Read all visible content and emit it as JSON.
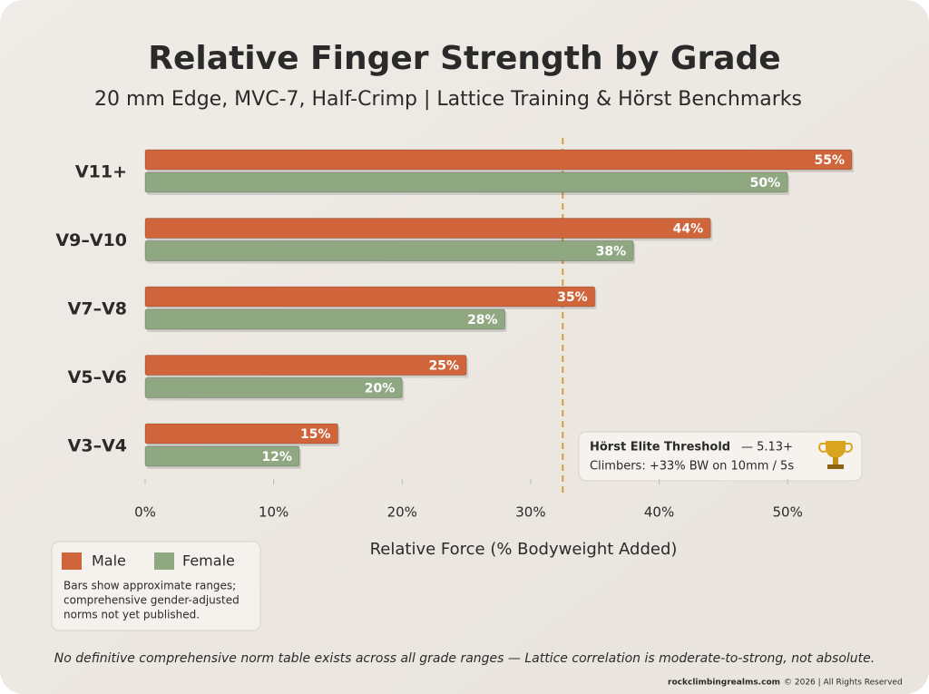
{
  "chart_data": {
    "type": "bar",
    "orientation": "horizontal",
    "title": "Relative Finger Strength by Grade",
    "subtitle": "20 mm Edge, MVC-7, Half-Crimp | Lattice Training & Hörst Benchmarks",
    "x_label": "Relative Force (% Bodyweight Added)",
    "categories": [
      "V11+",
      "V9–V10",
      "V7–V8",
      "V5–V6",
      "V3–V4"
    ],
    "series": [
      {
        "name": "Male",
        "color": "#d0643a",
        "values": [
          55,
          44,
          35,
          25,
          15
        ],
        "value_labels": [
          "55%",
          "44%",
          "35%",
          "25%",
          "15%"
        ]
      },
      {
        "name": "Female",
        "color": "#8fa882",
        "values": [
          50,
          38,
          28,
          20,
          12
        ],
        "value_labels": [
          "50%",
          "38%",
          "28%",
          "20%",
          "12%"
        ]
      }
    ],
    "xlim": [
      0,
      55
    ],
    "xticks": [
      {
        "value": 0,
        "label": "0%"
      },
      {
        "value": 10,
        "label": "10%"
      },
      {
        "value": 20,
        "label": "20%"
      },
      {
        "value": 30,
        "label": "30%"
      },
      {
        "value": 40,
        "label": "40%"
      },
      {
        "value": 50,
        "label": "50%"
      }
    ],
    "threshold": {
      "value": 32.5,
      "title": "Hörst Elite Threshold",
      "grade": "— 5.13+",
      "detail": "Climbers: +33% BW on 10mm / 5s"
    },
    "legend_note": [
      "Bars show approximate ranges;",
      "comprehensive gender-adjusted",
      "norms not yet published."
    ],
    "footnote": "No definitive comprehensive norm table exists across all grade ranges — Lattice correlation is moderate-to-strong, not absolute.",
    "credit_site": "rockclimbingrealms.com",
    "credit_rest": "© 2026 | All Rights Reserved"
  }
}
